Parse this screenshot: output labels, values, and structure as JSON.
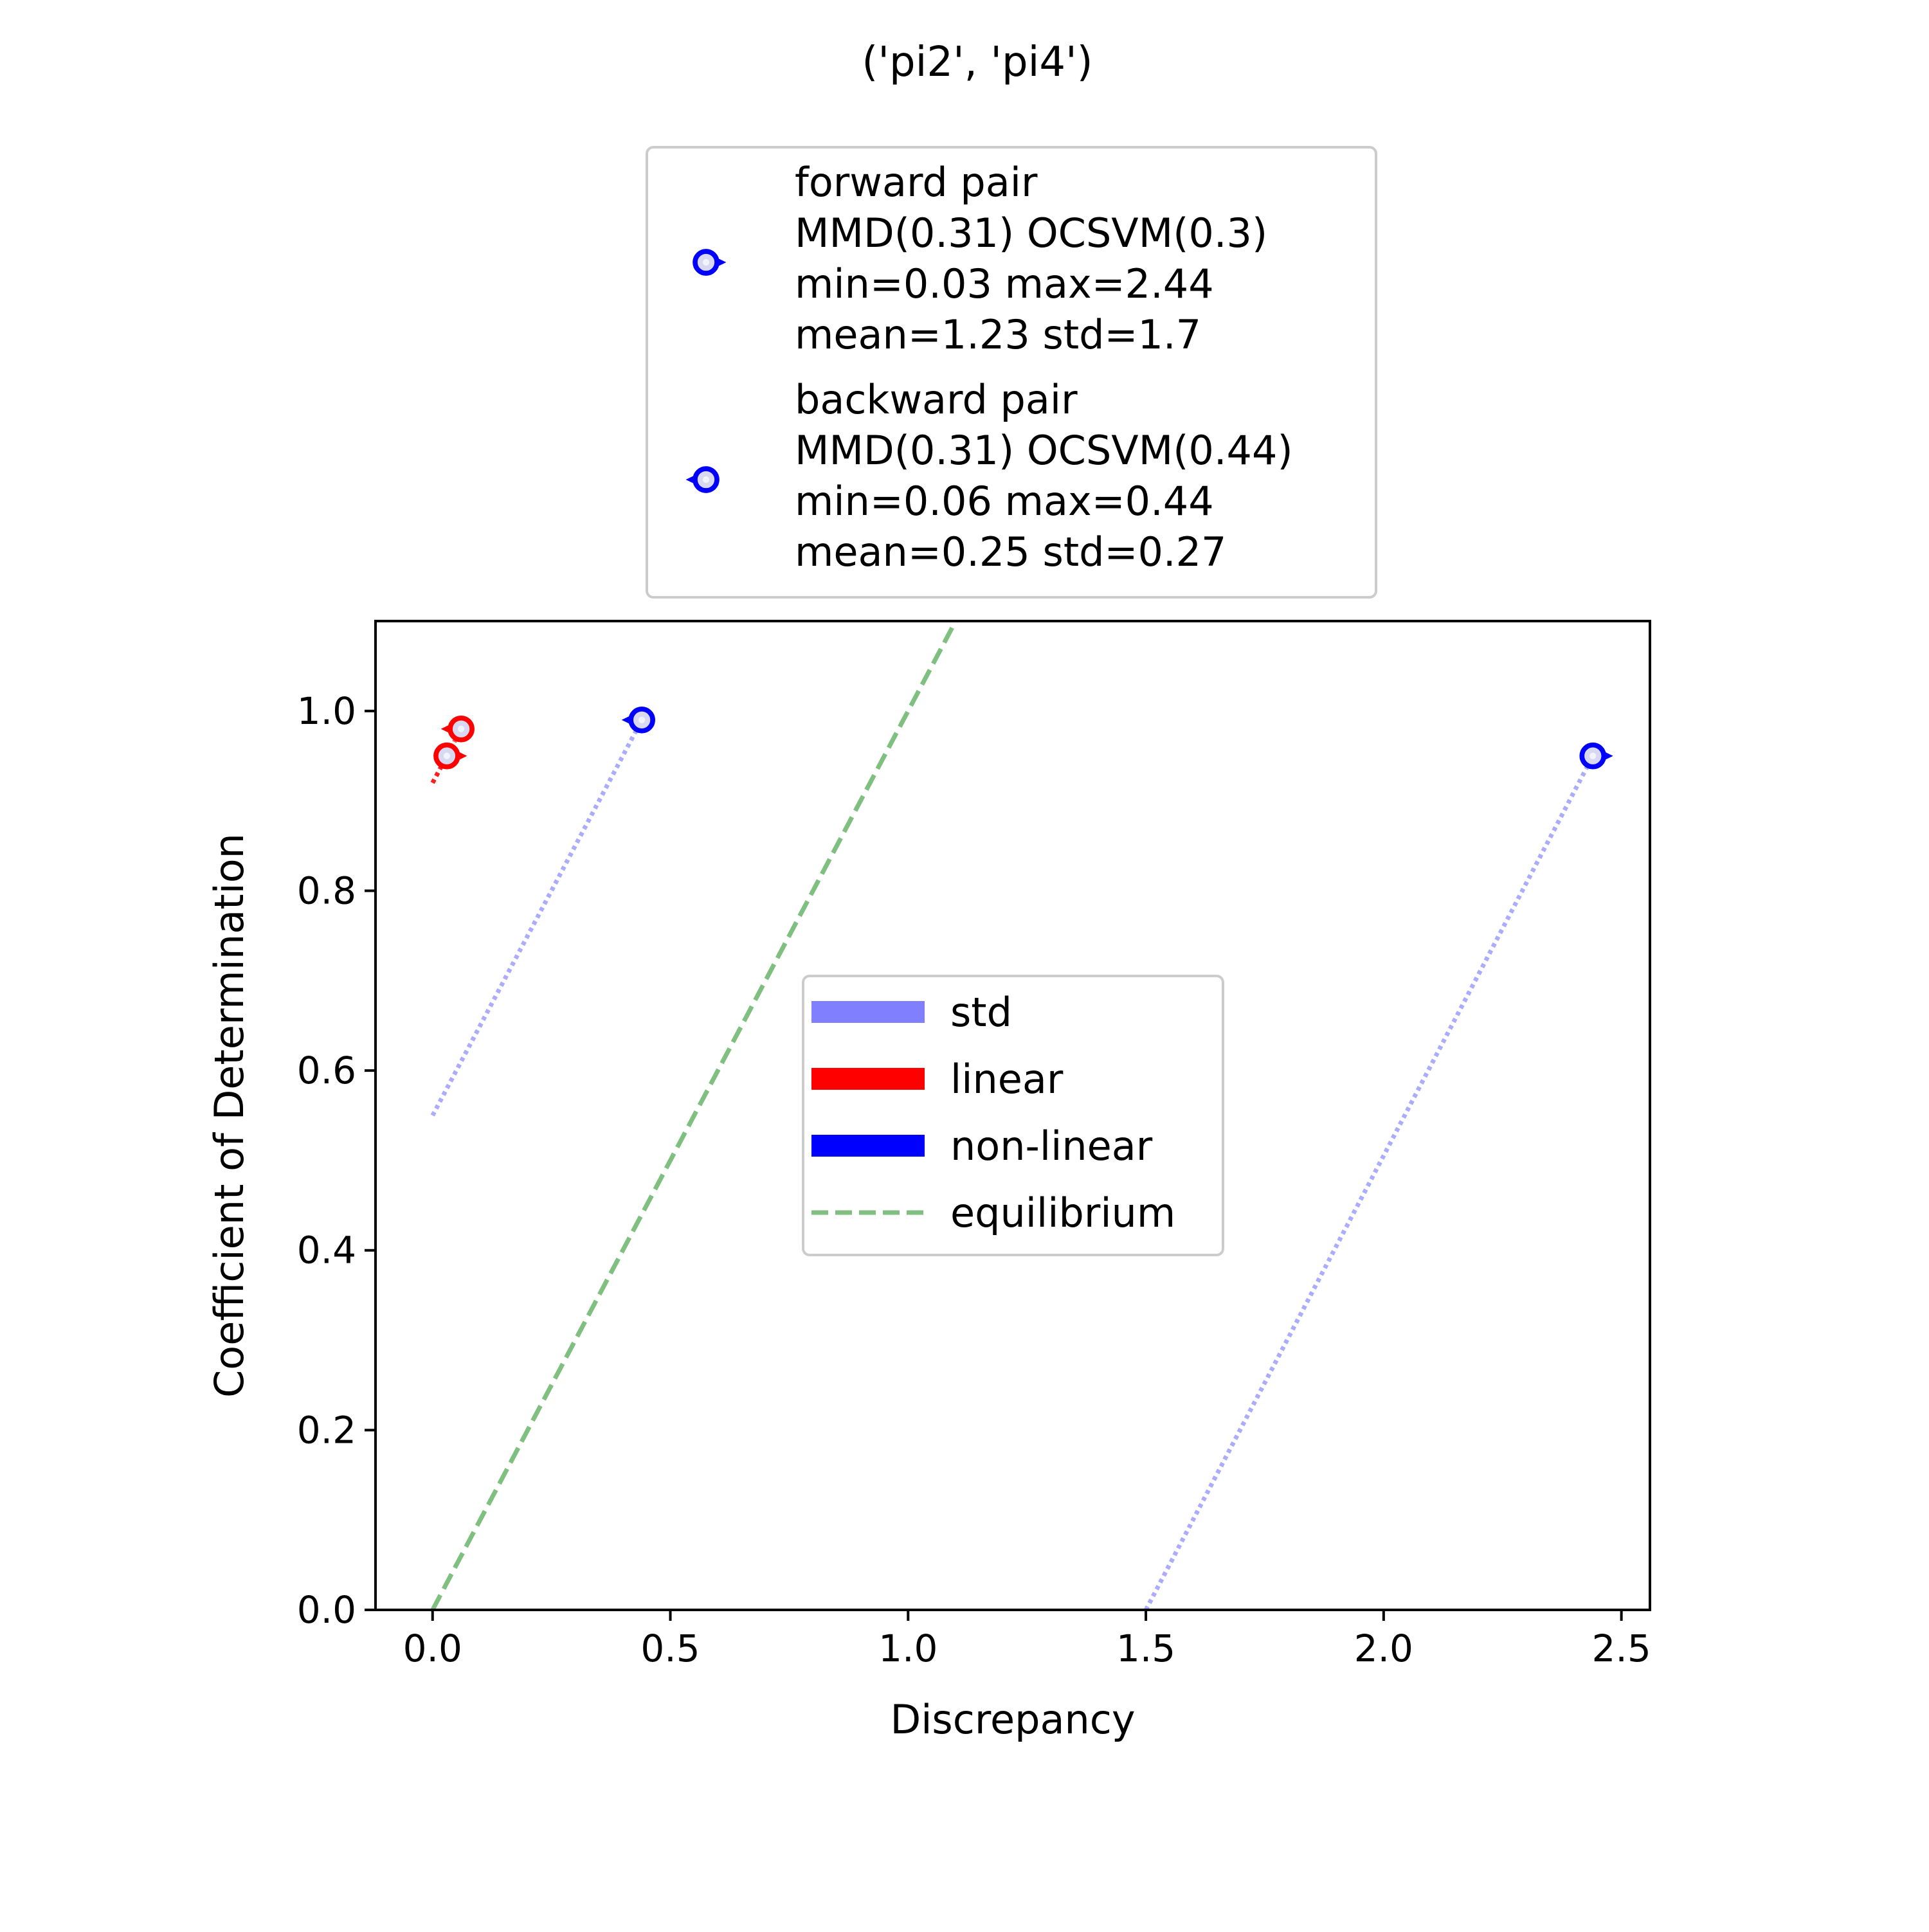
{
  "chart_data": {
    "type": "scatter",
    "title": "('pi2', 'pi4')",
    "xlabel": "Discrepancy",
    "ylabel": "Coefficient of Determination",
    "xlim": [
      -0.12,
      2.56
    ],
    "ylim": [
      0.0,
      1.1
    ],
    "xticks": [
      0.0,
      0.5,
      1.0,
      1.5,
      2.0,
      2.5
    ],
    "xtick_labels": [
      "0.0",
      "0.5",
      "1.0",
      "1.5",
      "2.0",
      "2.5"
    ],
    "yticks": [
      0.0,
      0.2,
      0.4,
      0.6,
      0.8,
      1.0
    ],
    "ytick_labels": [
      "0.0",
      "0.2",
      "0.4",
      "0.6",
      "0.8",
      "1.0"
    ],
    "grid": false,
    "colors": {
      "linear": "#ff0000",
      "non_linear": "#0000ff",
      "std": "#8080ff",
      "equilibrium": "#7fbf7f",
      "marker_fill": "#d8d8f0"
    },
    "equilibrium": {
      "x": [
        0.0,
        1.1
      ],
      "y": [
        0.0,
        1.1
      ]
    },
    "series": [
      {
        "group": "forward pair",
        "marker": "right-pointer",
        "points": [
          {
            "kind": "non-linear",
            "x": 2.44,
            "y": 0.95,
            "std_from": [
              1.5,
              0.0
            ]
          },
          {
            "kind": "linear",
            "x": 0.03,
            "y": 0.95,
            "std_from": [
              0.0,
              0.92
            ]
          }
        ]
      },
      {
        "group": "backward pair",
        "marker": "left-pointer",
        "points": [
          {
            "kind": "non-linear",
            "x": 0.44,
            "y": 0.99,
            "std_from": [
              0.0,
              0.55
            ]
          },
          {
            "kind": "linear",
            "x": 0.06,
            "y": 0.98,
            "std_from": [
              0.0,
              0.92
            ]
          }
        ]
      }
    ],
    "top_legend": [
      {
        "marker": "right-pointer",
        "lines": [
          "forward pair",
          "MMD(0.31) OCSVM(0.3)",
          "min=0.03 max=2.44",
          "mean=1.23 std=1.7"
        ]
      },
      {
        "marker": "left-pointer",
        "lines": [
          "backward pair",
          "MMD(0.31) OCSVM(0.44)",
          "min=0.06 max=0.44",
          "mean=0.25 std=0.27"
        ]
      }
    ],
    "inner_legend": [
      {
        "label": "std",
        "style": "thick",
        "color": "#8080ff"
      },
      {
        "label": "linear",
        "style": "thick",
        "color": "#ff0000"
      },
      {
        "label": "non-linear",
        "style": "thick",
        "color": "#0000ff"
      },
      {
        "label": "equilibrium",
        "style": "dashed",
        "color": "#7fbf7f"
      }
    ],
    "inner_legend_placement": "center"
  }
}
